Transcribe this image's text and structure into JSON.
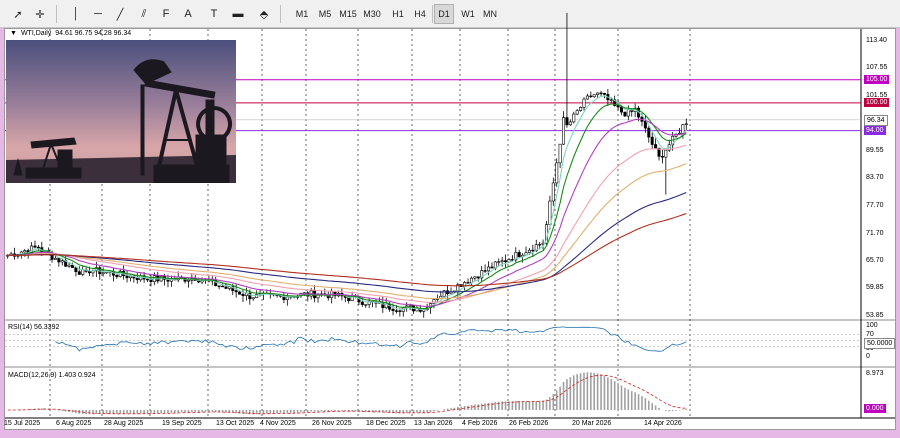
{
  "toolbar": {
    "tools": [
      {
        "name": "cursor-icon",
        "glyph": "➚"
      },
      {
        "name": "crosshair-icon",
        "glyph": "✛"
      },
      {
        "name": "vertical-line-icon",
        "glyph": "│"
      },
      {
        "name": "horizontal-line-icon",
        "glyph": "─"
      },
      {
        "name": "trendline-icon",
        "glyph": "╱"
      },
      {
        "name": "equidistant-channel-icon",
        "glyph": "⫽"
      },
      {
        "name": "fibonacci-icon",
        "glyph": "F"
      },
      {
        "name": "text-icon",
        "glyph": "A"
      },
      {
        "name": "text-label-icon",
        "glyph": "T"
      },
      {
        "name": "rectangle-icon",
        "glyph": "▬"
      },
      {
        "name": "shapes-icon",
        "glyph": "⬘"
      }
    ],
    "timeframes": [
      "M1",
      "M5",
      "M15",
      "M30",
      "H1",
      "H4",
      "D1",
      "W1",
      "MN"
    ],
    "active_timeframe": "D1"
  },
  "legend": {
    "symbol": "WTI,Daily",
    "ohlc": "94.61 96.75 94.28 96.34"
  },
  "price_axis": {
    "ticks": [
      "113.40",
      "107.55",
      "101.55",
      "95.70",
      "89.55",
      "83.70",
      "77.70",
      "71.70",
      "65.70",
      "59.85",
      "53.85"
    ],
    "tags": [
      {
        "label": "105.00",
        "color": "#c000c0"
      },
      {
        "label": "100.00",
        "color": "#c00040"
      },
      {
        "label": "96.34",
        "color": "#ffffff"
      },
      {
        "label": "94.00",
        "color": "#8a2be2"
      }
    ]
  },
  "rsi": {
    "label": "RSI(14) 56.3392",
    "axis_ticks": [
      "100",
      "70",
      "30",
      "0"
    ],
    "current_tag": "50.0000"
  },
  "macd": {
    "label": "MACD(12,26,9) 1.403 0.924",
    "axis_top": "8.973",
    "current_tag": "0.000"
  },
  "dates": [
    "15 Jul 2025",
    "6 Aug 2025",
    "28 Aug 2025",
    "19 Sep 2025",
    "13 Oct 2025",
    "4 Nov 2025",
    "26 Nov 2025",
    "18 Dec 2025",
    "13 Jan 2026",
    "4 Feb 2026",
    "26 Feb 2026",
    "20 Mar 2026",
    "14 Apr 2026"
  ],
  "photo": {
    "name": "oil-pumpjack-photo"
  },
  "colors": {
    "accent_frame": "#e6b8e6",
    "line_105": "#c000c0",
    "line_100": "#c00040",
    "line_94": "#8a2be2",
    "candle": "#000000"
  }
}
